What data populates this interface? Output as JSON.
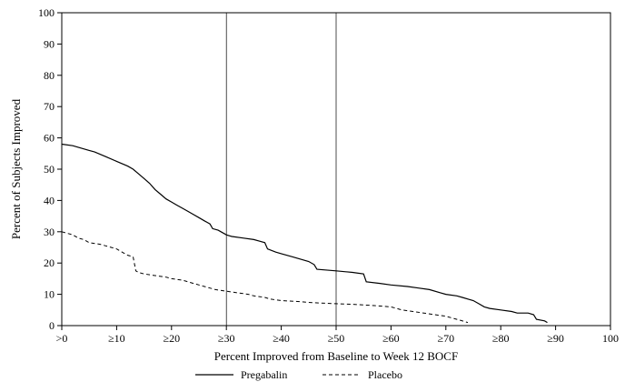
{
  "chart_data": {
    "type": "line",
    "title": "",
    "xlabel": "Percent Improved from Baseline to Week 12 BOCF",
    "ylabel": "Percent of Subjects Improved",
    "xlim": [
      0,
      100
    ],
    "ylim": [
      0,
      100
    ],
    "grid": false,
    "legend_position": "bottom",
    "line_color": "#000000",
    "x_ticks": [
      {
        "value": 0,
        "label": ">0"
      },
      {
        "value": 10,
        "label": "≥10"
      },
      {
        "value": 20,
        "label": "≥20"
      },
      {
        "value": 30,
        "label": "≥30"
      },
      {
        "value": 40,
        "label": "≥40"
      },
      {
        "value": 50,
        "label": "≥50"
      },
      {
        "value": 60,
        "label": "≥60"
      },
      {
        "value": 70,
        "label": "≥70"
      },
      {
        "value": 80,
        "label": "≥80"
      },
      {
        "value": 90,
        "label": "≥90"
      },
      {
        "value": 100,
        "label": "100"
      }
    ],
    "y_ticks": [
      0,
      10,
      20,
      30,
      40,
      50,
      60,
      70,
      80,
      90,
      100
    ],
    "reference_lines_x": [
      30,
      50
    ],
    "series": [
      {
        "name": "Pregabalin",
        "style": "solid",
        "color": "#000000",
        "points": [
          [
            0,
            58
          ],
          [
            2,
            57.5
          ],
          [
            3,
            57
          ],
          [
            5,
            56
          ],
          [
            6,
            55.5
          ],
          [
            8,
            54
          ],
          [
            10,
            52.5
          ],
          [
            12,
            51
          ],
          [
            13,
            50
          ],
          [
            14,
            48.5
          ],
          [
            15,
            47
          ],
          [
            16,
            45.5
          ],
          [
            17,
            43.5
          ],
          [
            18,
            42
          ],
          [
            19,
            40.5
          ],
          [
            20,
            39.5
          ],
          [
            21,
            38.5
          ],
          [
            22,
            37.5
          ],
          [
            23,
            36.5
          ],
          [
            24,
            35.5
          ],
          [
            25,
            34.5
          ],
          [
            26,
            33.5
          ],
          [
            26.5,
            33
          ],
          [
            27,
            32.5
          ],
          [
            27.5,
            31
          ],
          [
            28.5,
            30.5
          ],
          [
            29,
            30
          ],
          [
            30,
            29
          ],
          [
            31,
            28.5
          ],
          [
            33,
            28
          ],
          [
            35,
            27.5
          ],
          [
            36,
            27
          ],
          [
            37,
            26.5
          ],
          [
            37.5,
            24.5
          ],
          [
            39,
            23.5
          ],
          [
            40,
            23
          ],
          [
            42,
            22
          ],
          [
            44,
            21
          ],
          [
            45,
            20.5
          ],
          [
            46,
            19.5
          ],
          [
            46.5,
            18
          ],
          [
            48,
            17.8
          ],
          [
            50,
            17.5
          ],
          [
            53,
            17
          ],
          [
            55,
            16.5
          ],
          [
            55.5,
            14
          ],
          [
            58,
            13.5
          ],
          [
            60,
            13
          ],
          [
            63,
            12.5
          ],
          [
            65,
            12
          ],
          [
            67,
            11.5
          ],
          [
            69,
            10.5
          ],
          [
            70,
            10
          ],
          [
            72,
            9.5
          ],
          [
            73,
            9
          ],
          [
            74,
            8.5
          ],
          [
            75,
            8
          ],
          [
            76,
            7
          ],
          [
            77,
            6
          ],
          [
            78,
            5.5
          ],
          [
            80,
            5
          ],
          [
            82,
            4.5
          ],
          [
            83,
            4
          ],
          [
            85,
            4
          ],
          [
            86,
            3.5
          ],
          [
            86.5,
            2
          ],
          [
            88,
            1.5
          ],
          [
            88.5,
            1
          ]
        ]
      },
      {
        "name": "Placebo",
        "style": "dashed",
        "color": "#000000",
        "points": [
          [
            0,
            30
          ],
          [
            1,
            29.5
          ],
          [
            2,
            29
          ],
          [
            3,
            28
          ],
          [
            4,
            27.5
          ],
          [
            5,
            26.5
          ],
          [
            7,
            26
          ],
          [
            8,
            25.5
          ],
          [
            9,
            25
          ],
          [
            10,
            24.5
          ],
          [
            11,
            23.5
          ],
          [
            12,
            22.5
          ],
          [
            13,
            22
          ],
          [
            13.5,
            17.5
          ],
          [
            14,
            17
          ],
          [
            15,
            16.5
          ],
          [
            17,
            16
          ],
          [
            19,
            15.5
          ],
          [
            20,
            15
          ],
          [
            22,
            14.5
          ],
          [
            23,
            14
          ],
          [
            24,
            13.5
          ],
          [
            25,
            13
          ],
          [
            26,
            12.5
          ],
          [
            27,
            12
          ],
          [
            28,
            11.5
          ],
          [
            30,
            11
          ],
          [
            32,
            10.5
          ],
          [
            34,
            10
          ],
          [
            35,
            9.5
          ],
          [
            37,
            9
          ],
          [
            38,
            8.5
          ],
          [
            40,
            8
          ],
          [
            43,
            7.7
          ],
          [
            45,
            7.4
          ],
          [
            47,
            7.2
          ],
          [
            50,
            7
          ],
          [
            53,
            6.8
          ],
          [
            55,
            6.6
          ],
          [
            57,
            6.4
          ],
          [
            60,
            6
          ],
          [
            61,
            5.5
          ],
          [
            62,
            5
          ],
          [
            64,
            4.5
          ],
          [
            66,
            4
          ],
          [
            68,
            3.5
          ],
          [
            70,
            3
          ],
          [
            71,
            2.5
          ],
          [
            72,
            2
          ],
          [
            73,
            1.5
          ],
          [
            74,
            1
          ]
        ]
      }
    ]
  },
  "legend": {
    "pregabalin_label": "Pregabalin",
    "placebo_label": "Placebo"
  }
}
